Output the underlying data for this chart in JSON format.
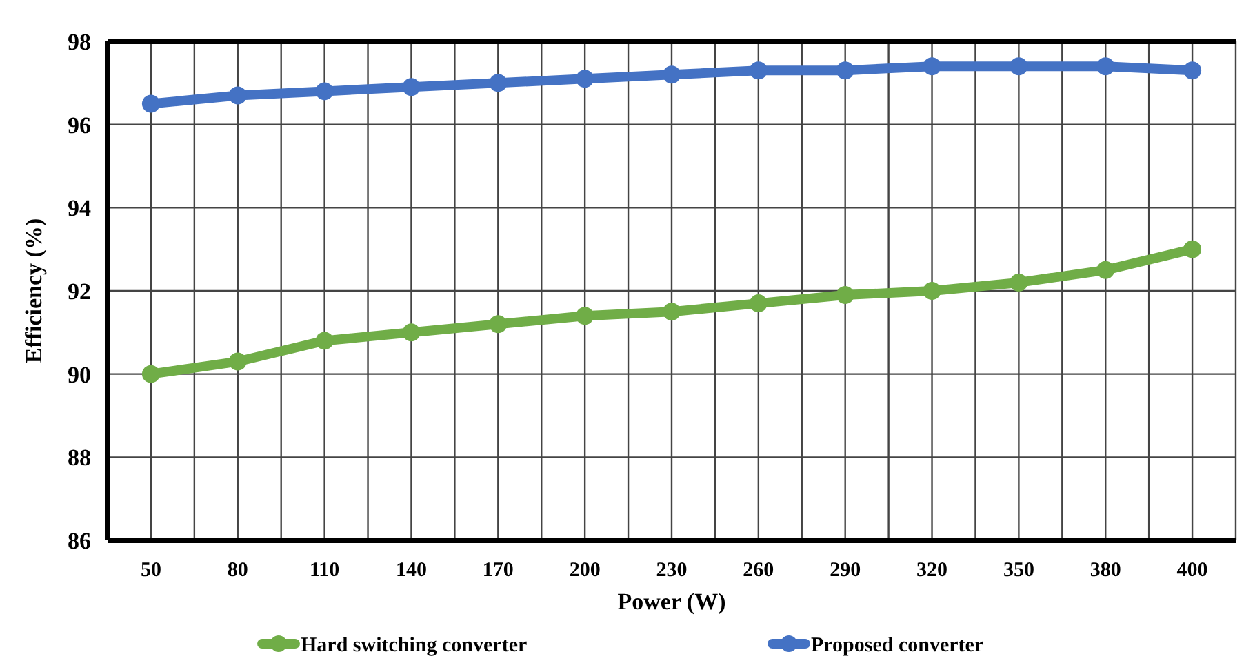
{
  "chart_data": {
    "type": "line",
    "xlabel": "Power (W)",
    "ylabel": "Efficiency (%)",
    "categories": [
      "50",
      "80",
      "110",
      "140",
      "170",
      "200",
      "230",
      "260",
      "290",
      "320",
      "350",
      "380",
      "400"
    ],
    "series": [
      {
        "name": "Hard switching converter",
        "color": "#70ad47",
        "values": [
          90.0,
          90.3,
          90.8,
          91.0,
          91.2,
          91.4,
          91.5,
          91.7,
          91.9,
          92.0,
          92.2,
          92.5,
          93.0
        ]
      },
      {
        "name": "Proposed converter",
        "color": "#4472c4",
        "values": [
          96.5,
          96.7,
          96.8,
          96.9,
          97.0,
          97.1,
          97.2,
          97.3,
          97.3,
          97.4,
          97.4,
          97.4,
          97.3
        ]
      }
    ],
    "ylim": [
      86,
      98
    ],
    "yticks": [
      86,
      88,
      90,
      92,
      94,
      96,
      98
    ],
    "grid": true,
    "legend": "bottom",
    "marker": "circle",
    "line_style": "solid"
  }
}
